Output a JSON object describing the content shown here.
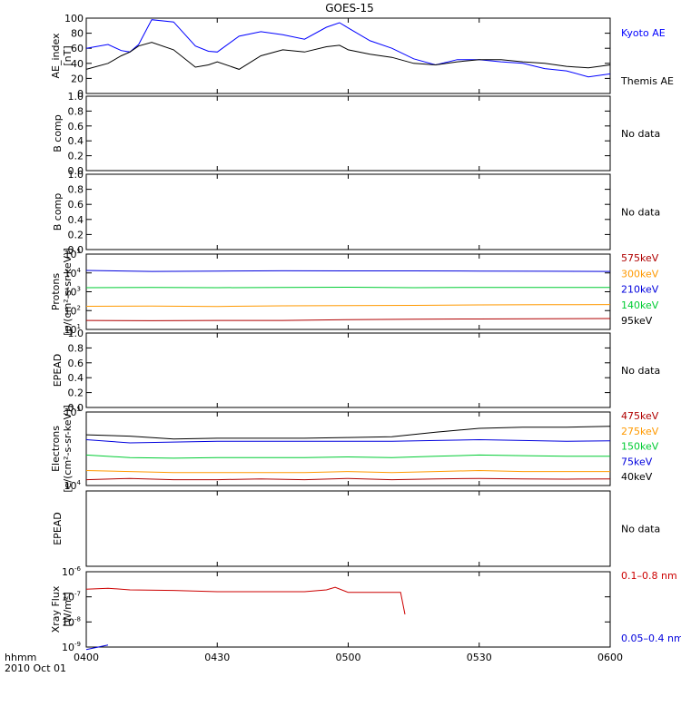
{
  "title": "GOES-15",
  "time_axis": {
    "ticks": [
      "0400",
      "0430",
      "0500",
      "0530",
      "0600"
    ],
    "corner_label": "hhmm",
    "date_label": "2010 Oct 01"
  },
  "chart_data": [
    {
      "type": "line",
      "panel": "AE index",
      "ylabel": "AE_index",
      "yunit": "[nT]",
      "ylim": [
        0,
        100
      ],
      "yscale": "linear",
      "yticks": [
        "0",
        "20",
        "40",
        "60",
        "80",
        "100"
      ],
      "x": [
        "04:00",
        "04:05",
        "04:08",
        "04:10",
        "04:12",
        "04:15",
        "04:20",
        "04:25",
        "04:28",
        "04:30",
        "04:35",
        "04:40",
        "04:45",
        "04:50",
        "04:55",
        "04:58",
        "05:00",
        "05:05",
        "05:10",
        "05:15",
        "05:20",
        "05:25",
        "05:30",
        "05:35",
        "05:40",
        "05:45",
        "05:50",
        "05:55",
        "06:00"
      ],
      "series": [
        {
          "name": "Kyoto AE",
          "color": "#0000ff",
          "values": [
            60,
            65,
            57,
            55,
            65,
            98,
            95,
            63,
            56,
            55,
            76,
            82,
            78,
            72,
            88,
            94,
            87,
            70,
            60,
            46,
            38,
            45,
            45,
            42,
            40,
            33,
            30,
            22,
            26
          ]
        },
        {
          "name": "Themis AE",
          "color": "#000000",
          "values": [
            32,
            40,
            50,
            55,
            63,
            68,
            58,
            35,
            38,
            42,
            32,
            50,
            58,
            55,
            62,
            64,
            58,
            52,
            48,
            40,
            38,
            42,
            45,
            45,
            42,
            40,
            36,
            34,
            38
          ]
        }
      ]
    },
    {
      "type": "line",
      "panel": "B comp 1",
      "ylabel": "B comp",
      "ylim": [
        0,
        1
      ],
      "yticks": [
        "0.0",
        "0.2",
        "0.4",
        "0.6",
        "0.8",
        "1.0"
      ],
      "status": "No data",
      "series": []
    },
    {
      "type": "line",
      "panel": "B comp 2",
      "ylabel": "B comp",
      "ylim": [
        0,
        1
      ],
      "yticks": [
        "0.0",
        "0.2",
        "0.4",
        "0.6",
        "0.8",
        "1.0"
      ],
      "status": "No data",
      "series": []
    },
    {
      "type": "line",
      "panel": "Protons",
      "ylabel": "Protons",
      "yunit": "[p/(cm²-s-sr-keV)]",
      "yscale": "log",
      "ylim": [
        10,
        100000
      ],
      "yticks": [
        {
          "base": "10",
          "exp": "1"
        },
        {
          "base": "10",
          "exp": "2"
        },
        {
          "base": "10",
          "exp": "3"
        },
        {
          "base": "10",
          "exp": "4"
        },
        {
          "base": "10",
          "exp": "5"
        }
      ],
      "x": [
        "04:00",
        "04:15",
        "04:30",
        "04:45",
        "05:00",
        "05:15",
        "05:30",
        "05:45",
        "06:00"
      ],
      "series": [
        {
          "name": "575keV",
          "color": "#b00000",
          "values": [
            null,
            null,
            null,
            null,
            null,
            null,
            null,
            null,
            null
          ]
        },
        {
          "name": "300keV",
          "color": "#ff9900",
          "values": [
            null,
            null,
            null,
            null,
            null,
            null,
            null,
            null,
            null
          ]
        },
        {
          "name": "210keV",
          "color": "#0000dd",
          "values": [
            13500,
            12000,
            12500,
            13000,
            12800,
            12800,
            12500,
            12300,
            12000
          ]
        },
        {
          "name": "140keV",
          "color": "#00cc33",
          "values": [
            1650,
            1700,
            1650,
            1700,
            1750,
            1650,
            1700,
            1680,
            1700
          ]
        },
        {
          "name": "95keV",
          "color": "#000000",
          "values": [
            null,
            null,
            null,
            null,
            null,
            null,
            null,
            null,
            null
          ]
        },
        {
          "name": "",
          "color": "#ff9900",
          "values": [
            170,
            175,
            165,
            180,
            185,
            190,
            200,
            205,
            210
          ]
        },
        {
          "name": "",
          "color": "#b00000",
          "values": [
            30,
            29,
            30,
            30,
            33,
            35,
            36,
            37,
            38
          ]
        }
      ]
    },
    {
      "type": "line",
      "panel": "EPEAD 1",
      "ylabel": "EPEAD",
      "ylim": [
        0,
        1
      ],
      "yticks": [
        "0.0",
        "0.2",
        "0.4",
        "0.6",
        "0.8",
        "1.0"
      ],
      "status": "No data",
      "series": []
    },
    {
      "type": "line",
      "panel": "Electrons",
      "ylabel": "Electrons",
      "yunit": "[e/(cm²-s-sr-keV)]",
      "yscale": "log",
      "ylim": [
        10000,
        100000
      ],
      "yticks": [
        {
          "base": "10",
          "exp": "4"
        },
        {
          "base": "10",
          "exp": "5"
        }
      ],
      "x": [
        "04:00",
        "04:10",
        "04:20",
        "04:30",
        "04:40",
        "04:50",
        "05:00",
        "05:10",
        "05:20",
        "05:30",
        "05:40",
        "05:50",
        "06:00"
      ],
      "series": [
        {
          "name": "475keV",
          "color": "#b00000",
          "values": [
            null,
            null,
            null,
            null,
            null,
            null,
            null,
            null,
            null,
            null,
            null,
            null,
            null
          ]
        },
        {
          "name": "275keV",
          "color": "#ff9900",
          "values": [
            null,
            null,
            null,
            null,
            null,
            null,
            null,
            null,
            null,
            null,
            null,
            null,
            null
          ]
        },
        {
          "name": "150keV",
          "color": "#00cc33",
          "values": [
            null,
            null,
            null,
            null,
            null,
            null,
            null,
            null,
            null,
            null,
            null,
            null,
            null
          ]
        },
        {
          "name": "75keV",
          "color": "#0000dd",
          "values": [
            42000,
            38000,
            39000,
            40000,
            40000,
            40000,
            40000,
            40000,
            41000,
            42000,
            41000,
            40000,
            40500
          ]
        },
        {
          "name": "40keV",
          "color": "#000000",
          "values": [
            49000,
            47000,
            43000,
            44000,
            44000,
            44000,
            45000,
            46000,
            53000,
            60000,
            62000,
            62000,
            64000
          ]
        },
        {
          "name": "",
          "color": "#00cc33",
          "values": [
            26000,
            24000,
            23500,
            24000,
            24000,
            24000,
            24500,
            24000,
            25000,
            26000,
            25500,
            25000,
            25000
          ]
        },
        {
          "name": "",
          "color": "#ff9900",
          "values": [
            16000,
            15500,
            15000,
            15000,
            15000,
            15000,
            15500,
            15000,
            15500,
            16000,
            15500,
            15500,
            15500
          ]
        },
        {
          "name": "",
          "color": "#b00000",
          "values": [
            12000,
            12500,
            12000,
            12000,
            12300,
            12000,
            12500,
            12000,
            12300,
            12500,
            12300,
            12200,
            12300
          ]
        }
      ]
    },
    {
      "type": "line",
      "panel": "EPEAD 2",
      "ylabel": "EPEAD",
      "ylim": [
        0,
        1
      ],
      "yticks": [],
      "status": "No data",
      "series": []
    },
    {
      "type": "line",
      "panel": "X-ray Flux",
      "ylabel": "Xray Flux",
      "yunit": "[W/m²]",
      "yscale": "log",
      "ylim": [
        1e-09,
        1e-06
      ],
      "yticks": [
        {
          "base": "10",
          "exp": "-9"
        },
        {
          "base": "10",
          "exp": "-8"
        },
        {
          "base": "10",
          "exp": "-7"
        },
        {
          "base": "10",
          "exp": "-6"
        }
      ],
      "x": [
        "04:00",
        "04:05",
        "04:10",
        "04:20",
        "04:30",
        "04:40",
        "04:50",
        "04:55",
        "04:57",
        "05:00",
        "05:05",
        "05:10",
        "05:12",
        "05:13"
      ],
      "series": [
        {
          "name": "0.1–0.8 nm",
          "color": "#cc0000",
          "values": [
            2e-07,
            2.2e-07,
            1.9e-07,
            1.8e-07,
            1.6e-07,
            1.6e-07,
            1.6e-07,
            1.9e-07,
            2.4e-07,
            1.5e-07,
            1.5e-07,
            1.5e-07,
            1.5e-07,
            2e-08
          ]
        },
        {
          "name": "0.05–0.4 nm",
          "color": "#0000dd",
          "values": [
            8e-10,
            1.2e-09,
            null,
            1.6e-09,
            null,
            null,
            1.2e-09,
            null,
            null,
            null,
            null,
            null,
            null,
            null
          ]
        }
      ]
    }
  ]
}
